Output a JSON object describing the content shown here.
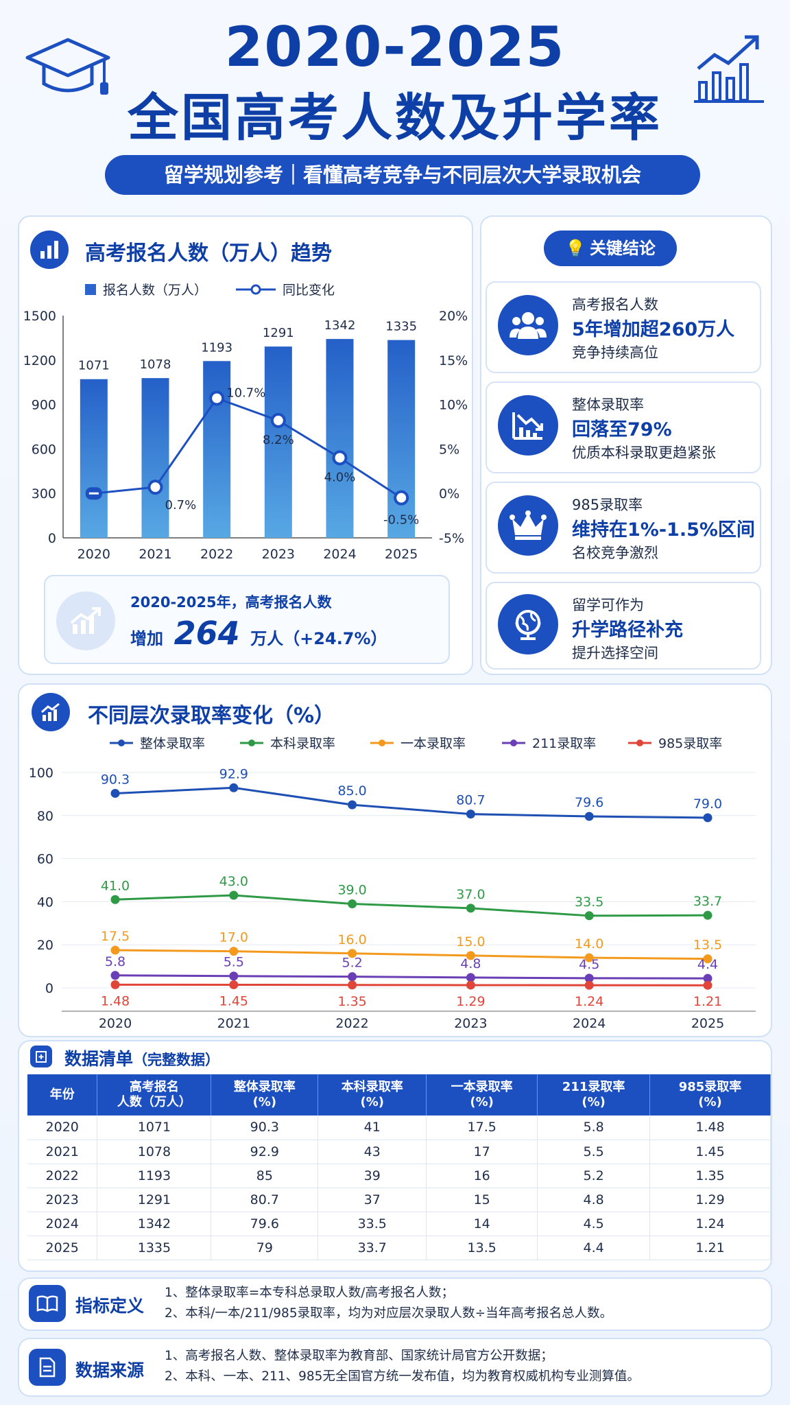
{
  "header": {
    "title_line1": "2020-2025",
    "title_line2": "全国高考人数及升学率",
    "subtitle": "留学规划参考｜看懂高考竞争与不同层次大学录取机会"
  },
  "colors": {
    "primary": "#1c4fc0",
    "overall": "#1e4fb3",
    "undergrad": "#2e9a46",
    "tier1": "#f39a1e",
    "c211": "#6a3fb5",
    "c985": "#e0453a"
  },
  "bar_section": {
    "title": "高考报名人数（万人）趋势",
    "legend_bar": "报名人数（万人）",
    "legend_line": "同比变化",
    "summary_line1": "2020-2025年，高考报名人数",
    "summary_prefix": "增加",
    "summary_number": "264",
    "summary_suffix": "万人（+24.7%）"
  },
  "key_points": {
    "title": "关键结论",
    "items": [
      {
        "icon": "people-icon",
        "line1": "高考报名人数",
        "line2": "5年增加超260万人",
        "line3": "竞争持续高位"
      },
      {
        "icon": "decline-chart-icon",
        "line1": "整体录取率",
        "line2": "回落至79%",
        "line3": "优质本科录取更趋紧张"
      },
      {
        "icon": "crown-icon",
        "line1": "985录取率",
        "line2": "维持在1%-1.5%区间",
        "line3": "名校竞争激烈"
      },
      {
        "icon": "globe-icon",
        "line1": "留学可作为",
        "line2": "升学路径补充",
        "line3": "提升选择空间"
      }
    ]
  },
  "line_section": {
    "title": "不同层次录取率变化（%）"
  },
  "chart_data": [
    {
      "type": "bar",
      "categories": [
        "2020",
        "2021",
        "2022",
        "2023",
        "2024",
        "2025"
      ],
      "series": [
        {
          "name": "报名人数（万人）",
          "values": [
            1071,
            1078,
            1193,
            1291,
            1342,
            1335
          ]
        },
        {
          "name": "同比变化",
          "values": [
            null,
            0.7,
            10.7,
            8.2,
            4.0,
            -0.5
          ],
          "labels": [
            "",
            "0.7%",
            "10.7%",
            "8.2%",
            "4.0%",
            "-0.5%"
          ]
        }
      ],
      "ylim": [
        0,
        1500
      ],
      "yticks": [
        "0",
        "300",
        "600",
        "900",
        "1200",
        "1500"
      ],
      "y2lim": [
        -5,
        20
      ],
      "y2ticks": [
        "-5%",
        "0%",
        "5%",
        "10%",
        "15%",
        "20%"
      ],
      "legend": "top"
    },
    {
      "type": "line",
      "categories": [
        "2020",
        "2021",
        "2022",
        "2023",
        "2024",
        "2025"
      ],
      "series": [
        {
          "name": "整体录取率",
          "values": [
            90.3,
            92.9,
            85.0,
            80.7,
            79.6,
            79.0
          ],
          "labels": [
            "90.3",
            "92.9",
            "85.0",
            "80.7",
            "79.6",
            "79.0"
          ]
        },
        {
          "name": "本科录取率",
          "values": [
            41.0,
            43.0,
            39.0,
            37.0,
            33.5,
            33.7
          ],
          "labels": [
            "41.0",
            "43.0",
            "39.0",
            "37.0",
            "33.5",
            "33.7"
          ]
        },
        {
          "name": "一本录取率",
          "values": [
            17.5,
            17.0,
            16.0,
            15.0,
            14.0,
            13.5
          ],
          "labels": [
            "17.5",
            "17.0",
            "16.0",
            "15.0",
            "14.0",
            "13.5"
          ]
        },
        {
          "name": "211录取率",
          "values": [
            5.8,
            5.5,
            5.2,
            4.8,
            4.5,
            4.4
          ],
          "labels": [
            "5.8",
            "5.5",
            "5.2",
            "4.8",
            "4.5",
            "4.4"
          ]
        },
        {
          "name": "985录取率",
          "values": [
            1.48,
            1.45,
            1.35,
            1.29,
            1.24,
            1.21
          ],
          "labels": [
            "1.48",
            "1.45",
            "1.35",
            "1.29",
            "1.24",
            "1.21"
          ]
        }
      ],
      "ylim": [
        0,
        100
      ],
      "yticks": [
        "0",
        "20",
        "40",
        "60",
        "80",
        "100"
      ],
      "legend": "top",
      "grid": true
    }
  ],
  "table": {
    "title": "数据清单",
    "title_note": "（完整数据）",
    "headers": [
      "年份",
      "高考报名\n人数（万人）",
      "整体录取率\n(%)",
      "本科录取率\n(%)",
      "一本录取率\n(%)",
      "211录取率\n(%)",
      "985录取率\n(%)"
    ],
    "rows": [
      [
        "2020",
        "1071",
        "90.3",
        "41",
        "17.5",
        "5.8",
        "1.48"
      ],
      [
        "2021",
        "1078",
        "92.9",
        "43",
        "17",
        "5.5",
        "1.45"
      ],
      [
        "2022",
        "1193",
        "85",
        "39",
        "16",
        "5.2",
        "1.35"
      ],
      [
        "2023",
        "1291",
        "80.7",
        "37",
        "15",
        "4.8",
        "1.29"
      ],
      [
        "2024",
        "1342",
        "79.6",
        "33.5",
        "14",
        "4.5",
        "1.24"
      ],
      [
        "2025",
        "1335",
        "79",
        "33.7",
        "13.5",
        "4.4",
        "1.21"
      ]
    ]
  },
  "definitions": {
    "title": "指标定义",
    "lines": [
      "1、整体录取率=本专科总录取人数/高考报名人数；",
      "2、本科/一本/211/985录取率，均为对应层次录取人数÷当年高考报名总人数。"
    ]
  },
  "sources": {
    "title": "数据来源",
    "lines": [
      "1、高考报名人数、整体录取率为教育部、国家统计局官方公开数据；",
      "2、本科、一本、211、985无全国官方统一发布值，均为教育权威机构专业测算值。"
    ]
  }
}
